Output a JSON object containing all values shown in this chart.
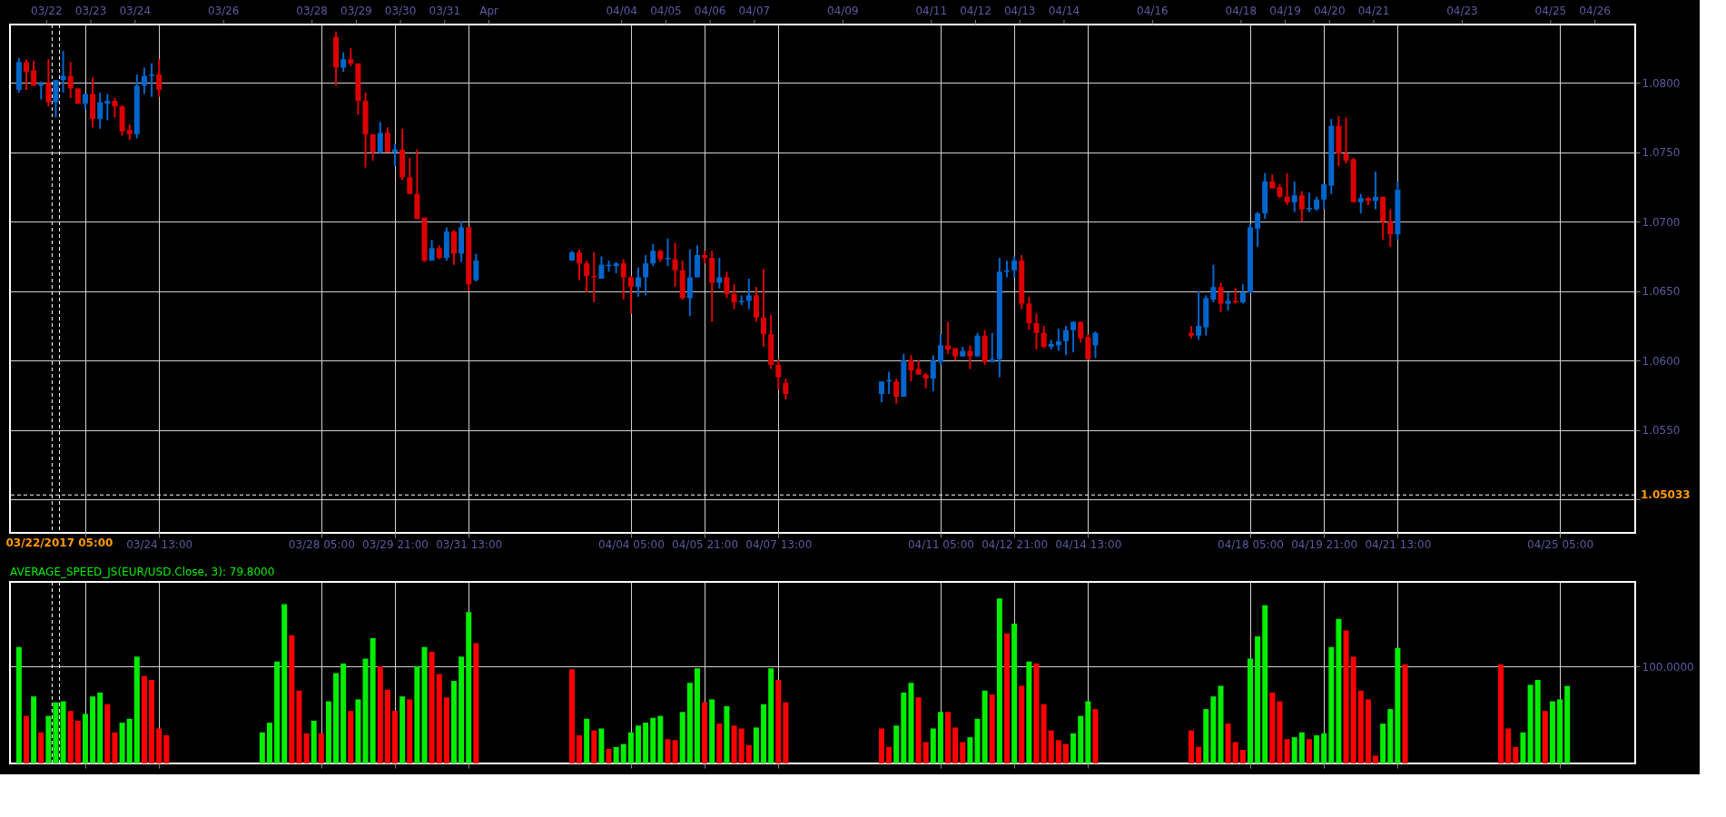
{
  "chart_data": [
    {
      "type": "candlestick",
      "x": [
        "2017-03-21T09:00",
        "2017-03-21T13:00",
        "2017-03-21T17:00",
        "2017-03-21T21:00",
        "2017-03-22T01:00",
        "2017-03-22T05:00",
        "2017-03-22T09:00",
        "2017-03-22T13:00",
        "2017-03-22T17:00",
        "2017-03-22T21:00",
        "2017-03-23T01:00",
        "2017-03-23T05:00",
        "2017-03-23T09:00",
        "2017-03-23T13:00",
        "2017-03-23T17:00",
        "2017-03-23T21:00",
        "2017-03-24T01:00",
        "2017-03-24T05:00",
        "2017-03-24T09:00",
        "2017-03-24T13:00",
        "2017-03-28T13:00",
        "2017-03-28T17:00",
        "2017-03-28T21:00",
        "2017-03-29T01:00",
        "2017-03-29T05:00",
        "2017-03-29T09:00",
        "2017-03-29T13:00",
        "2017-03-29T17:00",
        "2017-03-29T21:00",
        "2017-03-30T01:00",
        "2017-03-30T05:00",
        "2017-03-30T09:00",
        "2017-03-30T13:00",
        "2017-03-30T17:00",
        "2017-03-30T21:00",
        "2017-03-31T01:00",
        "2017-03-31T05:00",
        "2017-03-31T09:00",
        "2017-03-31T13:00",
        "2017-03-31T17:00",
        "2017-04-02T21:00",
        "2017-04-03T01:00",
        "2017-04-03T05:00",
        "2017-04-03T09:00",
        "2017-04-03T13:00",
        "2017-04-03T17:00",
        "2017-04-03T21:00",
        "2017-04-04T01:00",
        "2017-04-04T05:00",
        "2017-04-04T09:00",
        "2017-04-04T13:00",
        "2017-04-04T17:00",
        "2017-04-04T21:00",
        "2017-04-05T01:00",
        "2017-04-05T05:00",
        "2017-04-05T09:00",
        "2017-04-05T13:00",
        "2017-04-05T17:00",
        "2017-04-05T21:00",
        "2017-04-06T01:00",
        "2017-04-06T05:00",
        "2017-04-06T09:00",
        "2017-04-06T13:00",
        "2017-04-06T17:00",
        "2017-04-06T21:00",
        "2017-04-07T01:00",
        "2017-04-07T05:00",
        "2017-04-07T09:00",
        "2017-04-07T13:00",
        "2017-04-07T17:00",
        "2017-04-09T21:00",
        "2017-04-10T01:00",
        "2017-04-10T05:00",
        "2017-04-10T09:00",
        "2017-04-10T13:00",
        "2017-04-10T17:00",
        "2017-04-10T21:00",
        "2017-04-11T01:00",
        "2017-04-11T05:00",
        "2017-04-11T09:00",
        "2017-04-11T13:00",
        "2017-04-11T17:00",
        "2017-04-11T21:00",
        "2017-04-12T01:00",
        "2017-04-12T05:00",
        "2017-04-12T09:00",
        "2017-04-12T13:00",
        "2017-04-12T17:00",
        "2017-04-12T21:00",
        "2017-04-13T01:00",
        "2017-04-13T05:00",
        "2017-04-13T09:00",
        "2017-04-13T13:00",
        "2017-04-13T17:00",
        "2017-04-13T21:00",
        "2017-04-14T01:00",
        "2017-04-14T05:00",
        "2017-04-14T09:00",
        "2017-04-14T13:00",
        "2017-04-14T17:00",
        "2017-04-16T21:00",
        "2017-04-17T01:00",
        "2017-04-17T05:00",
        "2017-04-17T09:00",
        "2017-04-17T13:00",
        "2017-04-17T17:00",
        "2017-04-17T21:00",
        "2017-04-18T01:00",
        "2017-04-18T05:00",
        "2017-04-18T09:00",
        "2017-04-18T13:00",
        "2017-04-18T17:00",
        "2017-04-18T21:00",
        "2017-04-19T01:00",
        "2017-04-19T05:00",
        "2017-04-19T09:00",
        "2017-04-19T13:00",
        "2017-04-19T17:00",
        "2017-04-19T21:00",
        "2017-04-20T01:00",
        "2017-04-20T05:00",
        "2017-04-20T09:00",
        "2017-04-20T13:00",
        "2017-04-20T17:00",
        "2017-04-20T21:00",
        "2017-04-21T01:00",
        "2017-04-21T05:00",
        "2017-04-21T09:00",
        "2017-04-21T13:00"
      ],
      "ohlc": [
        [
          1.0795,
          1.0818,
          1.0793,
          1.0815
        ],
        [
          1.0815,
          1.0817,
          1.0795,
          1.0808
        ],
        [
          1.0809,
          1.0816,
          1.0798,
          1.0798
        ],
        [
          1.0798,
          1.0801,
          1.0788,
          1.08
        ],
        [
          1.08,
          1.0817,
          1.0783,
          1.0786
        ],
        [
          1.0786,
          1.0802,
          1.0775,
          1.0802
        ],
        [
          1.0802,
          1.0823,
          1.0793,
          1.0805
        ],
        [
          1.0805,
          1.0815,
          1.0789,
          1.0796
        ],
        [
          1.0796,
          1.0796,
          1.0785,
          1.0785
        ],
        [
          1.0785,
          1.0792,
          1.0781,
          1.0792
        ],
        [
          1.0792,
          1.0804,
          1.0768,
          1.0774
        ],
        [
          1.0774,
          1.0793,
          1.0767,
          1.0786
        ],
        [
          1.0785,
          1.0792,
          1.0773,
          1.0787
        ],
        [
          1.0787,
          1.0789,
          1.0775,
          1.0783
        ],
        [
          1.0783,
          1.0784,
          1.0762,
          1.0765
        ],
        [
          1.0766,
          1.077,
          1.0759,
          1.0763
        ],
        [
          1.0763,
          1.0806,
          1.076,
          1.0798
        ],
        [
          1.0798,
          1.0811,
          1.0792,
          1.0805
        ],
        [
          1.0805,
          1.0814,
          1.079,
          1.0806
        ],
        [
          1.0806,
          1.0817,
          1.079,
          1.0795
        ],
        [
          1.0833,
          1.0837,
          1.0798,
          1.0811
        ],
        [
          1.0811,
          1.0822,
          1.0808,
          1.0817
        ],
        [
          1.0817,
          1.0825,
          1.0812,
          1.0814
        ],
        [
          1.0814,
          1.0814,
          1.0777,
          1.0787
        ],
        [
          1.0787,
          1.0793,
          1.0739,
          1.0763
        ],
        [
          1.0763,
          1.0763,
          1.0744,
          1.075
        ],
        [
          1.075,
          1.0772,
          1.0749,
          1.0764
        ],
        [
          1.0764,
          1.0768,
          1.075,
          1.075
        ],
        [
          1.075,
          1.0756,
          1.074,
          1.0752
        ],
        [
          1.0752,
          1.0767,
          1.073,
          1.0732
        ],
        [
          1.0732,
          1.0746,
          1.072,
          1.072
        ],
        [
          1.072,
          1.0752,
          1.0702,
          1.0702
        ],
        [
          1.0703,
          1.0703,
          1.0671,
          1.0672
        ],
        [
          1.0672,
          1.0687,
          1.0672,
          1.0681
        ],
        [
          1.0681,
          1.0683,
          1.0673,
          1.0674
        ],
        [
          1.0674,
          1.0696,
          1.0672,
          1.0693
        ],
        [
          1.0693,
          1.0694,
          1.0669,
          1.0677
        ],
        [
          1.0677,
          1.07,
          1.0671,
          1.0696
        ],
        [
          1.0696,
          1.0696,
          1.065,
          1.0655
        ],
        [
          1.0658,
          1.0677,
          1.0657,
          1.0672
        ],
        [
          1.0672,
          1.0679,
          1.0672,
          1.0678
        ],
        [
          1.0678,
          1.068,
          1.0658,
          1.067
        ],
        [
          1.067,
          1.0672,
          1.0649,
          1.0661
        ],
        [
          1.0661,
          1.0678,
          1.0642,
          1.066
        ],
        [
          1.0659,
          1.0675,
          1.0659,
          1.0669
        ],
        [
          1.0668,
          1.0672,
          1.0664,
          1.0669
        ],
        [
          1.0668,
          1.0671,
          1.0663,
          1.067
        ],
        [
          1.067,
          1.0673,
          1.0644,
          1.066
        ],
        [
          1.066,
          1.0661,
          1.0634,
          1.0653
        ],
        [
          1.0653,
          1.0667,
          1.0646,
          1.066
        ],
        [
          1.066,
          1.0676,
          1.0647,
          1.067
        ],
        [
          1.067,
          1.0684,
          1.0668,
          1.0679
        ],
        [
          1.0679,
          1.068,
          1.0671,
          1.0673
        ],
        [
          1.0673,
          1.0688,
          1.0668,
          1.0674
        ],
        [
          1.0673,
          1.0685,
          1.0653,
          1.0665
        ],
        [
          1.0665,
          1.0672,
          1.0644,
          1.0645
        ],
        [
          1.0645,
          1.068,
          1.0632,
          1.066
        ],
        [
          1.066,
          1.0683,
          1.066,
          1.0676
        ],
        [
          1.0676,
          1.0679,
          1.067,
          1.0674
        ],
        [
          1.0674,
          1.0679,
          1.0628,
          1.0656
        ],
        [
          1.0656,
          1.0674,
          1.0652,
          1.066
        ],
        [
          1.066,
          1.0664,
          1.0645,
          1.0648
        ],
        [
          1.0648,
          1.0655,
          1.0637,
          1.0642
        ],
        [
          1.0642,
          1.0647,
          1.064,
          1.0643
        ],
        [
          1.0643,
          1.0659,
          1.0637,
          1.0647
        ],
        [
          1.0647,
          1.0653,
          1.0628,
          1.0631
        ],
        [
          1.0631,
          1.0666,
          1.061,
          1.0619
        ],
        [
          1.0619,
          1.0633,
          1.0594,
          1.0597
        ],
        [
          1.0597,
          1.0601,
          1.0579,
          1.0588
        ],
        [
          1.0584,
          1.0587,
          1.0572,
          1.0576
        ],
        [
          1.0576,
          1.0585,
          1.057,
          1.0585
        ],
        [
          1.0585,
          1.0592,
          1.0576,
          1.0586
        ],
        [
          1.0585,
          1.0587,
          1.0569,
          1.0574
        ],
        [
          1.0574,
          1.0605,
          1.0574,
          1.06
        ],
        [
          1.06,
          1.0604,
          1.0585,
          1.0593
        ],
        [
          1.0594,
          1.06,
          1.059,
          1.059
        ],
        [
          1.059,
          1.0591,
          1.058,
          1.0587
        ],
        [
          1.0587,
          1.0604,
          1.0578,
          1.06
        ],
        [
          1.0599,
          1.0619,
          1.0597,
          1.0611
        ],
        [
          1.0611,
          1.0628,
          1.0605,
          1.0608
        ],
        [
          1.0609,
          1.0609,
          1.06,
          1.0603
        ],
        [
          1.0603,
          1.061,
          1.0603,
          1.0607
        ],
        [
          1.0607,
          1.0611,
          1.0594,
          1.0603
        ],
        [
          1.0603,
          1.062,
          1.0603,
          1.0618
        ],
        [
          1.0618,
          1.0622,
          1.0597,
          1.0599
        ],
        [
          1.0599,
          1.062,
          1.0599,
          1.0601
        ],
        [
          1.0601,
          1.0674,
          1.0588,
          1.0664
        ],
        [
          1.0664,
          1.0672,
          1.066,
          1.0665
        ],
        [
          1.0665,
          1.0675,
          1.066,
          1.0672
        ],
        [
          1.0672,
          1.0676,
          1.0637,
          1.0641
        ],
        [
          1.0641,
          1.0646,
          1.0622,
          1.0627
        ],
        [
          1.0627,
          1.0634,
          1.0608,
          1.062
        ],
        [
          1.062,
          1.0625,
          1.0609,
          1.061
        ],
        [
          1.061,
          1.0615,
          1.0608,
          1.0612
        ],
        [
          1.0611,
          1.0623,
          1.0607,
          1.0614
        ],
        [
          1.0614,
          1.0625,
          1.0604,
          1.0622
        ],
        [
          1.0622,
          1.0628,
          1.0606,
          1.0628
        ],
        [
          1.0628,
          1.0628,
          1.0613,
          1.0616
        ],
        [
          1.0617,
          1.0619,
          1.0601,
          1.0601
        ],
        [
          1.0611,
          1.0621,
          1.0602,
          1.062
        ],
        [
          1.062,
          1.0625,
          1.0616,
          1.0618
        ],
        [
          1.0618,
          1.065,
          1.0615,
          1.0625
        ],
        [
          1.0624,
          1.0647,
          1.0618,
          1.0645
        ],
        [
          1.0644,
          1.0669,
          1.0642,
          1.0653
        ],
        [
          1.0653,
          1.0656,
          1.0635,
          1.0641
        ],
        [
          1.0641,
          1.0649,
          1.0636,
          1.0643
        ],
        [
          1.0643,
          1.0652,
          1.0641,
          1.0642
        ],
        [
          1.0642,
          1.0655,
          1.0641,
          1.0649
        ],
        [
          1.0649,
          1.0698,
          1.0649,
          1.0696
        ],
        [
          1.0695,
          1.0707,
          1.0682,
          1.0706
        ],
        [
          1.0706,
          1.0735,
          1.0702,
          1.0729
        ],
        [
          1.0729,
          1.0734,
          1.0724,
          1.0724
        ],
        [
          1.0725,
          1.0727,
          1.0717,
          1.0718
        ],
        [
          1.0718,
          1.0735,
          1.0712,
          1.0714
        ],
        [
          1.0714,
          1.0729,
          1.0707,
          1.0719
        ],
        [
          1.0719,
          1.0722,
          1.07,
          1.0709
        ],
        [
          1.0709,
          1.0721,
          1.0707,
          1.071
        ],
        [
          1.0709,
          1.0718,
          1.0708,
          1.0716
        ],
        [
          1.0716,
          1.0727,
          1.0709,
          1.0727
        ],
        [
          1.0726,
          1.0774,
          1.072,
          1.0769
        ],
        [
          1.0769,
          1.0776,
          1.074,
          1.0749
        ],
        [
          1.0749,
          1.0775,
          1.0742,
          1.0744
        ],
        [
          1.0745,
          1.0746,
          1.0714,
          1.0714
        ],
        [
          1.0714,
          1.072,
          1.0706,
          1.0717
        ],
        [
          1.0717,
          1.0718,
          1.0712,
          1.0715
        ],
        [
          1.0715,
          1.0736,
          1.0709,
          1.0718
        ],
        [
          1.0718,
          1.0718,
          1.0687,
          1.07
        ],
        [
          1.07,
          1.0709,
          1.0682,
          1.0691
        ],
        [
          1.0691,
          1.0729,
          1.0687,
          1.0723
        ]
      ],
      "colors": [
        "#0066cc",
        "#dd0000",
        "#dd0000",
        "#0066cc",
        "#dd0000",
        "#0066cc",
        "#0066cc",
        "#dd0000",
        "#dd0000",
        "#0066cc",
        "#dd0000",
        "#0066cc",
        "#0066cc",
        "#dd0000",
        "#dd0000",
        "#dd0000",
        "#0066cc",
        "#0066cc",
        "#0066cc",
        "#dd0000",
        "#dd0000",
        "#0066cc",
        "#dd0000",
        "#dd0000",
        "#dd0000",
        "#dd0000",
        "#0066cc",
        "#dd0000",
        "#0066cc",
        "#dd0000",
        "#dd0000",
        "#dd0000",
        "#dd0000",
        "#0066cc",
        "#dd0000",
        "#0066cc",
        "#dd0000",
        "#0066cc",
        "#dd0000",
        "#0066cc",
        "#0066cc",
        "#dd0000",
        "#dd0000",
        "#dd0000",
        "#0066cc",
        "#0066cc",
        "#0066cc",
        "#dd0000",
        "#dd0000",
        "#0066cc",
        "#0066cc",
        "#0066cc",
        "#dd0000",
        "#0066cc",
        "#dd0000",
        "#dd0000",
        "#0066cc",
        "#0066cc",
        "#dd0000",
        "#dd0000",
        "#0066cc",
        "#dd0000",
        "#dd0000",
        "#0066cc",
        "#0066cc",
        "#dd0000",
        "#dd0000",
        "#dd0000",
        "#dd0000",
        "#dd0000",
        "#0066cc",
        "#0066cc",
        "#dd0000",
        "#0066cc",
        "#dd0000",
        "#dd0000",
        "#dd0000",
        "#0066cc",
        "#0066cc",
        "#dd0000",
        "#dd0000",
        "#0066cc",
        "#dd0000",
        "#0066cc",
        "#dd0000",
        "#0066cc",
        "#0066cc",
        "#0066cc",
        "#0066cc",
        "#dd0000",
        "#dd0000",
        "#dd0000",
        "#dd0000",
        "#0066cc",
        "#0066cc",
        "#0066cc",
        "#0066cc",
        "#dd0000",
        "#dd0000",
        "#0066cc",
        "#dd0000",
        "#0066cc",
        "#0066cc",
        "#0066cc",
        "#dd0000",
        "#0066cc",
        "#dd0000",
        "#0066cc",
        "#0066cc",
        "#0066cc",
        "#0066cc",
        "#dd0000",
        "#dd0000",
        "#dd0000",
        "#0066cc",
        "#dd0000",
        "#0066cc",
        "#0066cc",
        "#0066cc",
        "#0066cc",
        "#dd0000",
        "#dd0000",
        "#dd0000",
        "#0066cc",
        "#dd0000",
        "#0066cc",
        "#dd0000",
        "#dd0000",
        "#0066cc"
      ],
      "xlim": [
        "2017-03-21T06:36",
        "2017-04-26T19:24"
      ],
      "xticks": [
        {
          "value": "2017-03-22T21:00",
          "label": null
        },
        {
          "value": "2017-03-24T13:00",
          "label": "03/24 13:00"
        },
        {
          "value": "2017-03-28T05:00",
          "label": "03/28 05:00"
        },
        {
          "value": "2017-03-29T21:00",
          "label": "03/29 21:00"
        },
        {
          "value": "2017-03-31T13:00",
          "label": "03/31 13:00"
        },
        {
          "value": "2017-04-04T05:00",
          "label": "04/04 05:00"
        },
        {
          "value": "2017-04-05T21:00",
          "label": "04/05 21:00"
        },
        {
          "value": "2017-04-07T13:00",
          "label": "04/07 13:00"
        },
        {
          "value": "2017-04-11T05:00",
          "label": "04/11 05:00"
        },
        {
          "value": "2017-04-12T21:00",
          "label": "04/12 21:00"
        },
        {
          "value": "2017-04-14T13:00",
          "label": "04/14 13:00"
        },
        {
          "value": "2017-04-18T05:00",
          "label": "04/18 05:00"
        },
        {
          "value": "2017-04-19T21:00",
          "label": "04/19 21:00"
        },
        {
          "value": "2017-04-21T13:00",
          "label": "04/21 13:00"
        },
        {
          "value": "2017-04-25T05:00",
          "label": "04/25 05:00"
        }
      ],
      "x2lim": [
        "2017-03-21T06:36",
        "2017-04-26T19:24"
      ],
      "x2ticks": [
        {
          "value": "2017-03-22",
          "label": "03/22"
        },
        {
          "value": "2017-03-23",
          "label": "03/23"
        },
        {
          "value": "2017-03-24",
          "label": "03/24"
        },
        {
          "value": "2017-03-26",
          "label": "03/26"
        },
        {
          "value": "2017-03-28",
          "label": "03/28"
        },
        {
          "value": "2017-03-29",
          "label": "03/29"
        },
        {
          "value": "2017-03-30",
          "label": "03/30"
        },
        {
          "value": "2017-03-31",
          "label": "03/31"
        },
        {
          "value": "2017-04-01",
          "label": "Apr"
        },
        {
          "value": "2017-04-04",
          "label": "04/04"
        },
        {
          "value": "2017-04-05",
          "label": "04/05"
        },
        {
          "value": "2017-04-06",
          "label": "04/06"
        },
        {
          "value": "2017-04-07",
          "label": "04/07"
        },
        {
          "value": "2017-04-09",
          "label": "04/09"
        },
        {
          "value": "2017-04-11",
          "label": "04/11"
        },
        {
          "value": "2017-04-12",
          "label": "04/12"
        },
        {
          "value": "2017-04-13",
          "label": "04/13"
        },
        {
          "value": "2017-04-14",
          "label": "04/14"
        },
        {
          "value": "2017-04-16",
          "label": "04/16"
        },
        {
          "value": "2017-04-18",
          "label": "04/18"
        },
        {
          "value": "2017-04-19",
          "label": "04/19"
        },
        {
          "value": "2017-04-20",
          "label": "04/20"
        },
        {
          "value": "2017-04-21",
          "label": "04/21"
        },
        {
          "value": "2017-04-23",
          "label": "04/23"
        },
        {
          "value": "2017-04-25",
          "label": "04/25"
        },
        {
          "value": "2017-04-26",
          "label": "04/26"
        }
      ],
      "ylim": [
        1.0476,
        1.0842
      ],
      "yticks": [
        {
          "value": 1.05,
          "label": null
        },
        {
          "value": 1.055,
          "label": "1.0550"
        },
        {
          "value": 1.06,
          "label": "1.0600"
        },
        {
          "value": 1.065,
          "label": "1.0650"
        },
        {
          "value": 1.07,
          "label": "1.0700"
        },
        {
          "value": 1.075,
          "label": "1.0750"
        },
        {
          "value": 1.08,
          "label": "1.0800"
        }
      ],
      "grid": true,
      "ref_lines": [
        {
          "axis": "y",
          "value": 1.05033,
          "label": "1.05033",
          "color": "#ffffff",
          "line_style": "dashed"
        },
        {
          "axis": "x",
          "value": "2017-03-22T03:00",
          "label": "03/22/2017 05:00",
          "color": "#ffffff",
          "line_style": "dashed"
        },
        {
          "axis": "x",
          "value": "2017-03-22T07:00",
          "label": null,
          "color": "#ffffff",
          "line_style": "dashed"
        }
      ]
    },
    {
      "type": "bar",
      "title": "AVERAGE_SPEED_JS(EUR/USD.Close, 3): 79.8000",
      "x": [
        "2017-03-21T09:00",
        "2017-03-21T13:00",
        "2017-03-21T17:00",
        "2017-03-21T21:00",
        "2017-03-22T01:00",
        "2017-03-22T05:00",
        "2017-03-22T09:00",
        "2017-03-22T13:00",
        "2017-03-22T17:00",
        "2017-03-22T21:00",
        "2017-03-23T01:00",
        "2017-03-23T05:00",
        "2017-03-23T09:00",
        "2017-03-23T13:00",
        "2017-03-23T17:00",
        "2017-03-23T21:00",
        "2017-03-24T01:00",
        "2017-03-24T05:00",
        "2017-03-24T09:00",
        "2017-03-24T13:00",
        "2017-03-24T17:00",
        "2017-03-26T21:00",
        "2017-03-27T01:00",
        "2017-03-27T05:00",
        "2017-03-27T09:00",
        "2017-03-27T13:00",
        "2017-03-27T17:00",
        "2017-03-27T21:00",
        "2017-03-28T01:00",
        "2017-03-28T05:00",
        "2017-03-28T09:00",
        "2017-03-28T13:00",
        "2017-03-28T17:00",
        "2017-03-28T21:00",
        "2017-03-29T01:00",
        "2017-03-29T05:00",
        "2017-03-29T09:00",
        "2017-03-29T13:00",
        "2017-03-29T17:00",
        "2017-03-29T21:00",
        "2017-03-30T01:00",
        "2017-03-30T05:00",
        "2017-03-30T09:00",
        "2017-03-30T13:00",
        "2017-03-30T17:00",
        "2017-03-30T21:00",
        "2017-03-31T01:00",
        "2017-03-31T05:00",
        "2017-03-31T09:00",
        "2017-03-31T13:00",
        "2017-03-31T17:00",
        "2017-04-02T21:00",
        "2017-04-03T01:00",
        "2017-04-03T05:00",
        "2017-04-03T09:00",
        "2017-04-03T13:00",
        "2017-04-03T17:00",
        "2017-04-03T21:00",
        "2017-04-04T01:00",
        "2017-04-04T05:00",
        "2017-04-04T09:00",
        "2017-04-04T13:00",
        "2017-04-04T17:00",
        "2017-04-04T21:00",
        "2017-04-05T01:00",
        "2017-04-05T05:00",
        "2017-04-05T09:00",
        "2017-04-05T13:00",
        "2017-04-05T17:00",
        "2017-04-05T21:00",
        "2017-04-06T01:00",
        "2017-04-06T05:00",
        "2017-04-06T09:00",
        "2017-04-06T13:00",
        "2017-04-06T17:00",
        "2017-04-06T21:00",
        "2017-04-07T01:00",
        "2017-04-07T05:00",
        "2017-04-07T09:00",
        "2017-04-07T13:00",
        "2017-04-07T17:00",
        "2017-04-09T21:00",
        "2017-04-10T01:00",
        "2017-04-10T05:00",
        "2017-04-10T09:00",
        "2017-04-10T13:00",
        "2017-04-10T17:00",
        "2017-04-10T21:00",
        "2017-04-11T01:00",
        "2017-04-11T05:00",
        "2017-04-11T09:00",
        "2017-04-11T13:00",
        "2017-04-11T17:00",
        "2017-04-11T21:00",
        "2017-04-12T01:00",
        "2017-04-12T05:00",
        "2017-04-12T09:00",
        "2017-04-12T13:00",
        "2017-04-12T17:00",
        "2017-04-12T21:00",
        "2017-04-13T01:00",
        "2017-04-13T05:00",
        "2017-04-13T09:00",
        "2017-04-13T13:00",
        "2017-04-13T17:00",
        "2017-04-13T21:00",
        "2017-04-14T01:00",
        "2017-04-14T05:00",
        "2017-04-14T09:00",
        "2017-04-14T13:00",
        "2017-04-14T17:00",
        "2017-04-16T21:00",
        "2017-04-17T01:00",
        "2017-04-17T05:00",
        "2017-04-17T09:00",
        "2017-04-17T13:00",
        "2017-04-17T17:00",
        "2017-04-17T21:00",
        "2017-04-18T01:00",
        "2017-04-18T05:00",
        "2017-04-18T09:00",
        "2017-04-18T13:00",
        "2017-04-18T17:00",
        "2017-04-18T21:00",
        "2017-04-19T01:00",
        "2017-04-19T05:00",
        "2017-04-19T09:00",
        "2017-04-19T13:00",
        "2017-04-19T17:00",
        "2017-04-19T21:00",
        "2017-04-20T01:00",
        "2017-04-20T05:00",
        "2017-04-20T09:00",
        "2017-04-20T13:00",
        "2017-04-20T17:00",
        "2017-04-20T21:00",
        "2017-04-21T01:00",
        "2017-04-21T05:00",
        "2017-04-21T09:00",
        "2017-04-21T13:00",
        "2017-04-21T17:00",
        "2017-04-23T21:00",
        "2017-04-24T01:00",
        "2017-04-24T05:00",
        "2017-04-24T09:00",
        "2017-04-24T13:00",
        "2017-04-24T17:00",
        "2017-04-24T21:00",
        "2017-04-25T01:00",
        "2017-04-25T05:00",
        "2017-04-25T09:00"
      ],
      "values": [
        120,
        49,
        69,
        32,
        49,
        63,
        64,
        54,
        44,
        51,
        69,
        73,
        61,
        32,
        42,
        46,
        110,
        90,
        86,
        36,
        29,
        32,
        42,
        105,
        164,
        132,
        75,
        31,
        44,
        31,
        64,
        93,
        103,
        54,
        66,
        108,
        129,
        100,
        76,
        54,
        69,
        66,
        100,
        120,
        115,
        92,
        68,
        85,
        110,
        156,
        124,
        97,
        29,
        46,
        34,
        36,
        15,
        17,
        20,
        32,
        39,
        42,
        47,
        49,
        25,
        24,
        53,
        83,
        98,
        63,
        66,
        41,
        59,
        39,
        36,
        19,
        37,
        61,
        98,
        86,
        63,
        36,
        17,
        39,
        73,
        83,
        68,
        22,
        36,
        53,
        53,
        37,
        22,
        27,
        46,
        75,
        71,
        170,
        134,
        144,
        80,
        105,
        103,
        61,
        34,
        24,
        20,
        31,
        49,
        64,
        56,
        34,
        17,
        56,
        69,
        80,
        41,
        22,
        14,
        108,
        131,
        163,
        73,
        64,
        25,
        27,
        32,
        25,
        29,
        31,
        120,
        149,
        137,
        110,
        75,
        66,
        8,
        41,
        56,
        119,
        102,
        102,
        36,
        17,
        32,
        81,
        86,
        54,
        64,
        66,
        79.8
      ],
      "colors": [
        "#00ee00",
        "#ff0000",
        "#00ee00",
        "#ff0000",
        "#00ee00",
        "#00ee00",
        "#00ee00",
        "#ff0000",
        "#ff0000",
        "#00ee00",
        "#00ee00",
        "#00ee00",
        "#ff0000",
        "#ff0000",
        "#00ee00",
        "#00ee00",
        "#00ee00",
        "#ff0000",
        "#ff0000",
        "#ff0000",
        "#ff0000",
        "#00ee00",
        "#00ee00",
        "#00ee00",
        "#00ee00",
        "#ff0000",
        "#ff0000",
        "#ff0000",
        "#00ee00",
        "#ff0000",
        "#00ee00",
        "#00ee00",
        "#00ee00",
        "#ff0000",
        "#00ee00",
        "#00ee00",
        "#00ee00",
        "#ff0000",
        "#ff0000",
        "#ff0000",
        "#00ee00",
        "#ff0000",
        "#00ee00",
        "#00ee00",
        "#ff0000",
        "#ff0000",
        "#ff0000",
        "#00ee00",
        "#00ee00",
        "#00ee00",
        "#ff0000",
        "#ff0000",
        "#ff0000",
        "#00ee00",
        "#ff0000",
        "#00ee00",
        "#ff0000",
        "#00ee00",
        "#00ee00",
        "#00ee00",
        "#00ee00",
        "#00ee00",
        "#00ee00",
        "#00ee00",
        "#ff0000",
        "#ff0000",
        "#00ee00",
        "#00ee00",
        "#00ee00",
        "#ff0000",
        "#00ee00",
        "#ff0000",
        "#00ee00",
        "#ff0000",
        "#ff0000",
        "#ff0000",
        "#00ee00",
        "#00ee00",
        "#00ee00",
        "#ff0000",
        "#ff0000",
        "#ff0000",
        "#ff0000",
        "#00ee00",
        "#00ee00",
        "#00ee00",
        "#ff0000",
        "#ff0000",
        "#00ee00",
        "#00ee00",
        "#ff0000",
        "#ff0000",
        "#ff0000",
        "#00ee00",
        "#00ee00",
        "#00ee00",
        "#ff0000",
        "#00ee00",
        "#ff0000",
        "#00ee00",
        "#ff0000",
        "#00ee00",
        "#ff0000",
        "#ff0000",
        "#ff0000",
        "#ff0000",
        "#ff0000",
        "#00ee00",
        "#00ee00",
        "#00ee00",
        "#ff0000",
        "#ff0000",
        "#ff0000",
        "#00ee00",
        "#00ee00",
        "#00ee00",
        "#ff0000",
        "#ff0000",
        "#ff0000",
        "#00ee00",
        "#00ee00",
        "#00ee00",
        "#ff0000",
        "#ff0000",
        "#ff0000",
        "#00ee00",
        "#00ee00",
        "#ff0000",
        "#00ee00",
        "#00ee00",
        "#00ee00",
        "#00ee00",
        "#ff0000",
        "#ff0000",
        "#ff0000",
        "#ff0000",
        "#ff0000",
        "#00ee00",
        "#00ee00",
        "#00ee00",
        "#ff0000",
        "#ff0000",
        "#ff0000",
        "#ff0000",
        "#00ee00",
        "#00ee00",
        "#00ee00",
        "#ff0000",
        "#00ee00",
        "#00ee00",
        "#00ee00"
      ],
      "xlim": [
        "2017-03-21T06:36",
        "2017-04-26T19:24"
      ],
      "xticks": [
        {
          "value": "2017-03-22T21:00",
          "label": null
        },
        {
          "value": "2017-03-24T13:00",
          "label": null
        },
        {
          "value": "2017-03-28T05:00",
          "label": null
        },
        {
          "value": "2017-03-29T21:00",
          "label": null
        },
        {
          "value": "2017-03-31T13:00",
          "label": null
        },
        {
          "value": "2017-04-04T05:00",
          "label": null
        },
        {
          "value": "2017-04-05T21:00",
          "label": null
        },
        {
          "value": "2017-04-07T13:00",
          "label": null
        },
        {
          "value": "2017-04-11T05:00",
          "label": null
        },
        {
          "value": "2017-04-12T21:00",
          "label": null
        },
        {
          "value": "2017-04-14T13:00",
          "label": null
        },
        {
          "value": "2017-04-18T05:00",
          "label": null
        },
        {
          "value": "2017-04-19T21:00",
          "label": null
        },
        {
          "value": "2017-04-21T13:00",
          "label": null
        },
        {
          "value": "2017-04-25T05:00",
          "label": null
        }
      ],
      "ylim": [
        0,
        187
      ],
      "yticks": [
        {
          "value": 100,
          "label": "100.0000"
        }
      ],
      "tick_labels": "y",
      "grid": true,
      "ref_lines": [
        {
          "axis": "x",
          "value": "2017-03-22T03:00",
          "color": "#ffffff",
          "line_style": "dashed"
        },
        {
          "axis": "x",
          "value": "2017-03-22T07:00",
          "color": "#ffffff",
          "line_style": "dashed"
        }
      ]
    }
  ]
}
